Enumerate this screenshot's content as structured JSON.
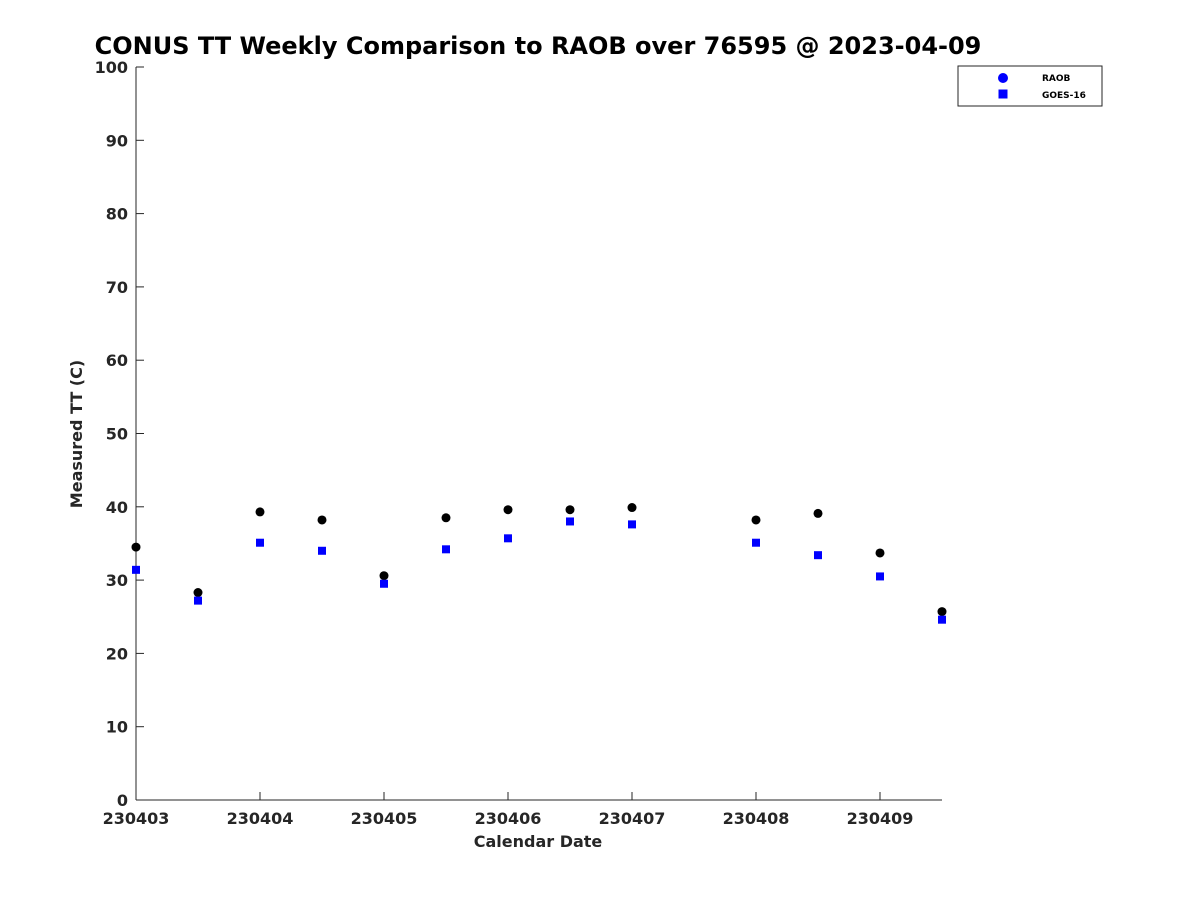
{
  "chart_data": {
    "type": "scatter",
    "title": "CONUS TT Weekly Comparison to RAOB over 76595 @ 2023-04-09",
    "xlabel": "Calendar Date",
    "ylabel": "Measured TT (C)",
    "xlim": [
      230403,
      230409.5
    ],
    "ylim": [
      0,
      100
    ],
    "x_ticks": [
      230403,
      230404,
      230405,
      230406,
      230407,
      230408,
      230409
    ],
    "x_tick_labels": [
      "230403",
      "230404",
      "230405",
      "230406",
      "230407",
      "230408",
      "230409"
    ],
    "y_ticks": [
      0,
      10,
      20,
      30,
      40,
      50,
      60,
      70,
      80,
      90,
      100
    ],
    "y_tick_labels": [
      "0",
      "10",
      "20",
      "30",
      "40",
      "50",
      "60",
      "70",
      "80",
      "90",
      "100"
    ],
    "grid": false,
    "legend_position": "top-right",
    "series": [
      {
        "name": "RAOB",
        "marker": "circle",
        "color": "#000000",
        "legend_color": "#0000ff",
        "x": [
          230403,
          230403.5,
          230404,
          230404.5,
          230405,
          230405.5,
          230406,
          230406.5,
          230407,
          230408,
          230408.5,
          230409,
          230409.5
        ],
        "y": [
          34.5,
          28.3,
          39.3,
          38.2,
          30.6,
          38.5,
          39.6,
          39.6,
          39.9,
          38.2,
          39.1,
          33.7,
          25.7
        ]
      },
      {
        "name": "GOES-16",
        "marker": "square",
        "color": "#0000ff",
        "legend_color": "#0000ff",
        "x": [
          230403,
          230403.5,
          230404,
          230404.5,
          230405,
          230405.5,
          230406,
          230406.5,
          230407,
          230408,
          230408.5,
          230409,
          230409.5
        ],
        "y": [
          31.4,
          27.2,
          35.1,
          34.0,
          29.5,
          34.2,
          35.7,
          38.0,
          37.6,
          35.1,
          33.4,
          30.5,
          24.6
        ]
      }
    ]
  }
}
